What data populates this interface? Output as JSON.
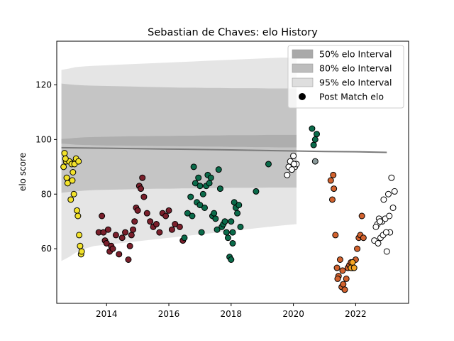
{
  "chart_data": {
    "type": "scatter",
    "title": "Sebastian de Chaves: elo History",
    "xlabel": "",
    "ylabel": "elo score",
    "xlim": [
      2012.4,
      2023.7
    ],
    "ylim": [
      40,
      136
    ],
    "xticks": [
      2014,
      2016,
      2018,
      2020,
      2022
    ],
    "xtick_labels": [
      "2014",
      "2016",
      "2018",
      "2020",
      "2022"
    ],
    "yticks": [
      60,
      80,
      100,
      120
    ],
    "ytick_labels": [
      "60",
      "80",
      "100",
      "120"
    ],
    "grid": false,
    "legend_position": "top-right",
    "legend": [
      {
        "label": "50% elo Interval",
        "color": "#a9a9a9"
      },
      {
        "label": "80% elo Interval",
        "color": "#bdbdbd"
      },
      {
        "label": "95% elo Interval",
        "color": "#dedede"
      },
      {
        "label": "Post Match elo",
        "color": "#000000"
      }
    ],
    "interval_x": [
      2012.55,
      2012.8,
      2013.0,
      2013.3,
      2013.6,
      2014.0,
      2014.4,
      2014.8,
      2015.2,
      2015.6,
      2016.0,
      2016.4,
      2016.8,
      2017.2,
      2017.6,
      2018.0,
      2018.4,
      2018.8,
      2019.2,
      2019.6,
      2020.1
    ],
    "interval_50": {
      "low": [
        98.5,
        98.3,
        98.1,
        98.0,
        97.9,
        97.8,
        97.8,
        97.7,
        97.7,
        97.6,
        97.6,
        97.5,
        97.5,
        97.4,
        97.4,
        97.3,
        97.3,
        97.2,
        97.2,
        97.1,
        97.1
      ],
      "high": [
        100.2,
        100.4,
        100.6,
        100.8,
        100.9,
        101.0,
        101.1,
        101.2,
        101.2,
        101.3,
        101.3,
        101.4,
        101.4,
        101.5,
        101.5,
        101.6,
        101.6,
        101.6,
        101.7,
        101.7,
        101.7
      ]
    },
    "interval_80": {
      "low": [
        80.5,
        80.8,
        81.0,
        81.3,
        81.5,
        81.6,
        81.7,
        81.8,
        81.9,
        82.0,
        82.0,
        82.1,
        82.1,
        82.2,
        82.2,
        82.3,
        82.3,
        82.3,
        82.4,
        82.4,
        82.4
      ],
      "high": [
        120.5,
        120.2,
        120.0,
        119.8,
        119.7,
        119.6,
        119.5,
        119.4,
        119.3,
        119.2,
        119.1,
        119.0,
        119.0,
        118.9,
        118.9,
        118.8,
        118.8,
        118.8,
        118.7,
        118.7,
        118.7
      ]
    },
    "interval_95": {
      "low": [
        55.5,
        57.0,
        58.5,
        60.0,
        61.0,
        61.5,
        62.0,
        62.5,
        63.0,
        63.5,
        64.0,
        64.5,
        65.0,
        65.5,
        66.0,
        66.5,
        67.0,
        67.5,
        68.0,
        68.5,
        69.0
      ],
      "high": [
        125.5,
        126.0,
        126.5,
        126.8,
        127.0,
        127.2,
        127.4,
        127.6,
        127.8,
        128.0,
        128.2,
        128.4,
        128.6,
        128.8,
        129.0,
        129.2,
        129.4,
        129.6,
        129.8,
        130.0,
        130.0
      ]
    },
    "median_line": {
      "x": [
        2012.55,
        2014.0,
        2016.0,
        2018.0,
        2020.0,
        2021.0,
        2022.0,
        2023.0
      ],
      "y": [
        97.0,
        96.8,
        96.5,
        96.2,
        95.8,
        95.6,
        95.5,
        95.3
      ]
    },
    "series": [
      {
        "name": "",
        "color": "#f2e22b",
        "x": [
          2012.62,
          2012.65,
          2012.7,
          2012.75,
          2012.8,
          2012.85,
          2012.9,
          2012.95,
          2013.0,
          2013.05,
          2013.08,
          2013.12,
          2013.15,
          2012.68,
          2012.72,
          2012.88,
          2012.92,
          2012.97,
          2013.02,
          2013.1,
          2013.18,
          2013.2
        ],
        "y": [
          90,
          95,
          92,
          84,
          92,
          78,
          85,
          80,
          92,
          74,
          72,
          65,
          61,
          93,
          86,
          91,
          88,
          91,
          93,
          92,
          58,
          59
        ]
      },
      {
        "name": "",
        "color": "#7a1f2b",
        "x": [
          2013.75,
          2013.85,
          2013.9,
          2013.95,
          2014.0,
          2014.05,
          2014.1,
          2014.15,
          2014.2,
          2014.3,
          2014.4,
          2014.5,
          2014.6,
          2014.7,
          2014.75,
          2014.8,
          2014.85,
          2014.9,
          2014.95,
          2015.0,
          2015.05,
          2015.1,
          2015.15,
          2015.2,
          2015.3,
          2015.4,
          2015.5,
          2015.6,
          2015.7,
          2015.8,
          2015.9,
          2016.0,
          2016.1,
          2016.2,
          2016.35,
          2016.45
        ],
        "y": [
          66,
          72,
          66,
          63,
          62,
          67,
          59,
          61,
          60,
          65,
          58,
          64,
          66,
          56,
          61,
          65,
          67,
          70,
          75,
          74,
          83,
          82,
          86,
          79,
          73,
          70,
          68,
          69,
          66,
          73,
          72,
          74,
          67,
          69,
          68,
          63
        ]
      },
      {
        "name": "",
        "color": "#0a6b4a",
        "x": [
          2016.5,
          2016.6,
          2016.7,
          2016.8,
          2016.85,
          2016.9,
          2016.95,
          2017.0,
          2017.05,
          2017.1,
          2017.15,
          2017.2,
          2017.25,
          2017.3,
          2017.35,
          2017.4,
          2017.5,
          2017.6,
          2017.65,
          2017.7,
          2017.75,
          2017.8,
          2017.85,
          2017.9,
          2017.95,
          2018.0,
          2018.05,
          2018.1,
          2018.15,
          2018.2,
          2018.25,
          2018.3,
          2018.8,
          2019.2,
          2016.75,
          2017.0,
          2017.45,
          2017.55,
          2018.0,
          2018.05
        ],
        "y": [
          64,
          73,
          79,
          90,
          84,
          77,
          86,
          76,
          66,
          80,
          75,
          83,
          87,
          84,
          86,
          72,
          71,
          89,
          82,
          68,
          69,
          70,
          66,
          64,
          57,
          56,
          62,
          77,
          75,
          73,
          76,
          68,
          81,
          91,
          72,
          83,
          73,
          67,
          70,
          66
        ]
      },
      {
        "name": "",
        "color": "#ffffff",
        "x": [
          2019.8,
          2019.9,
          2020.0,
          2020.05,
          2020.1,
          2019.85,
          2019.95,
          2020.02
        ],
        "y": [
          87,
          92,
          94,
          90,
          91,
          90,
          89,
          91
        ]
      },
      {
        "name": "",
        "color": "#8a9a9a",
        "x": [
          2020.7
        ],
        "y": [
          92
        ]
      },
      {
        "name": "",
        "color": "#0a6b4a",
        "x": [
          2020.6,
          2020.65,
          2020.7,
          2020.75
        ],
        "y": [
          104,
          98,
          100,
          102
        ]
      },
      {
        "name": "",
        "color": "#d2622e",
        "x": [
          2021.2,
          2021.25,
          2021.3,
          2021.35,
          2021.4,
          2021.45,
          2021.5,
          2021.55,
          2021.6,
          2021.65,
          2021.7,
          2021.75,
          2021.8,
          2021.85,
          2021.9,
          2022.0,
          2022.05,
          2022.1,
          2022.15,
          2022.2,
          2022.25,
          2021.28,
          2021.42,
          2021.58
        ],
        "y": [
          85,
          78,
          82,
          65,
          53,
          50,
          56,
          46,
          47,
          45,
          49,
          53,
          54,
          55,
          53,
          56,
          60,
          64,
          65,
          72,
          64,
          87,
          49,
          52
        ]
      },
      {
        "name": "",
        "color": "#f5a623",
        "x": [
          2021.85,
          2021.9,
          2021.95
        ],
        "y": [
          53,
          55,
          53
        ]
      },
      {
        "name": "",
        "color": "#ffffff",
        "x": [
          2022.6,
          2022.7,
          2022.75,
          2022.8,
          2022.85,
          2022.9,
          2022.95,
          2023.0,
          2023.05,
          2023.1,
          2023.15,
          2023.2,
          2023.25,
          2022.65,
          2022.72,
          2022.78,
          2022.88,
          2022.98,
          2023.08
        ],
        "y": [
          63,
          69,
          71,
          64,
          70,
          78,
          71,
          59,
          80,
          66,
          86,
          75,
          81,
          68,
          62,
          70,
          65,
          66,
          72
        ]
      }
    ]
  }
}
